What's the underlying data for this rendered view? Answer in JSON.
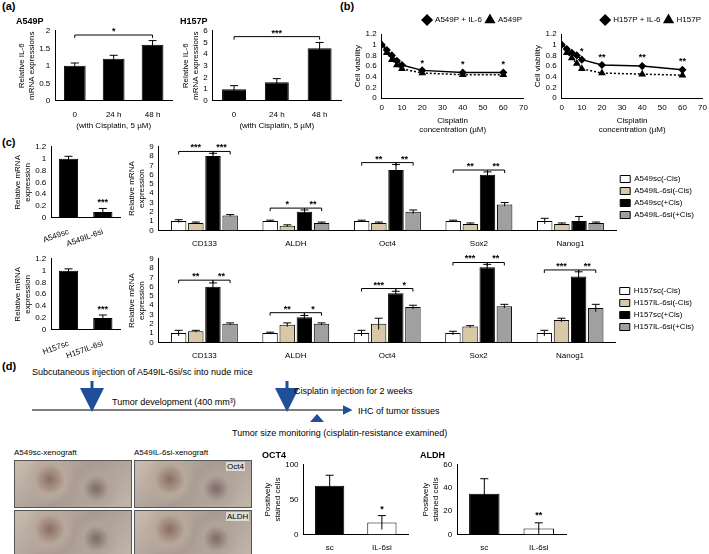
{
  "chart_data": [
    {
      "type": "bar",
      "title": "A549P",
      "categories": [
        "0",
        "24 h",
        "48 h"
      ],
      "values": [
        1.0,
        1.2,
        1.6
      ],
      "errors": [
        0.08,
        0.1,
        0.12
      ],
      "color": "#000000",
      "ylim": [
        0,
        2
      ],
      "yticks": [
        0,
        0.5,
        1,
        1.5,
        2
      ],
      "ylabel": "Relative IL-6 mRNA expressions",
      "xlabel": "(with Cisplatin, 5 µM)",
      "grid": false,
      "annotations": [
        {
          "text": "*",
          "from": "0",
          "to": "48 h",
          "y": 1.88
        }
      ]
    },
    {
      "type": "bar",
      "title": "H157P",
      "categories": [
        "0",
        "24 h",
        "48 h"
      ],
      "values": [
        1.0,
        1.6,
        4.5
      ],
      "errors": [
        0.3,
        0.3,
        0.5
      ],
      "color": "#000000",
      "ylim": [
        0,
        6
      ],
      "yticks": [
        0,
        1,
        2,
        3,
        4,
        5,
        6
      ],
      "ylabel": "Relative IL-6 mRNA expressions",
      "xlabel": "(with Cisplatin, 5 µM)",
      "grid": false,
      "annotations": [
        {
          "text": "***",
          "from": "0",
          "to": "48 h",
          "y": 5.5
        }
      ]
    },
    {
      "type": "line",
      "x": [
        0,
        2.5,
        5,
        7.5,
        10,
        20,
        40,
        60
      ],
      "xlim": [
        0,
        70
      ],
      "xticks": [
        0,
        10,
        20,
        30,
        40,
        50,
        60,
        70
      ],
      "ylim": [
        0,
        1.2
      ],
      "yticks": [
        0,
        0.2,
        0.4,
        0.6,
        0.8,
        1,
        1.2
      ],
      "xlabel": "Cisplatin concentration (µM)",
      "ylabel": "Cell viability",
      "grid": false,
      "legend": "top",
      "series": [
        {
          "name": "A549P + IL-6",
          "color": "#000000",
          "marker": "diamond",
          "line_style": "solid",
          "values": [
            1.0,
            0.9,
            0.8,
            0.7,
            0.62,
            0.52,
            0.48,
            0.48
          ]
        },
        {
          "name": "A549P",
          "color": "#000000",
          "marker": "triangle",
          "line_style": "dotted",
          "values": [
            1.0,
            0.85,
            0.72,
            0.62,
            0.55,
            0.47,
            0.44,
            0.44
          ]
        }
      ],
      "annotations": [
        {
          "text": "*",
          "x": 20,
          "y": 0.57
        },
        {
          "text": "*",
          "x": 40,
          "y": 0.54
        },
        {
          "text": "*",
          "x": 60,
          "y": 0.54
        }
      ]
    },
    {
      "type": "line",
      "x": [
        0,
        2.5,
        5,
        7.5,
        10,
        20,
        40,
        60
      ],
      "xlim": [
        0,
        70
      ],
      "xticks": [
        0,
        10,
        20,
        30,
        40,
        50,
        60,
        70
      ],
      "ylim": [
        0,
        1.2
      ],
      "yticks": [
        0,
        0.2,
        0.4,
        0.6,
        0.8,
        1,
        1.2
      ],
      "xlabel": "Cisplatin concentration (µM)",
      "ylabel": "Cell viability",
      "grid": false,
      "legend": "top",
      "series": [
        {
          "name": "H157P + IL-6",
          "color": "#000000",
          "marker": "diamond",
          "line_style": "solid",
          "values": [
            1.0,
            0.92,
            0.85,
            0.8,
            0.72,
            0.62,
            0.6,
            0.53
          ]
        },
        {
          "name": "H157P",
          "color": "#000000",
          "marker": "triangle",
          "line_style": "dotted",
          "values": [
            1.0,
            0.85,
            0.75,
            0.65,
            0.55,
            0.47,
            0.45,
            0.43
          ]
        }
      ],
      "annotations": [
        {
          "text": "*",
          "x": 10,
          "y": 0.78
        },
        {
          "text": "**",
          "x": 20,
          "y": 0.68
        },
        {
          "text": "**",
          "x": 40,
          "y": 0.67
        },
        {
          "text": "**",
          "x": 60,
          "y": 0.6
        }
      ]
    },
    {
      "type": "bar",
      "categories": [
        "A549sc",
        "A549IL-6si"
      ],
      "values": [
        1.0,
        0.1
      ],
      "errors": [
        0.04,
        0.06
      ],
      "color": "#000000",
      "ylim": [
        0,
        1.2
      ],
      "yticks": [
        0,
        0.2,
        0.4,
        0.6,
        0.8,
        1,
        1.2
      ],
      "ylabel": "Relative mRNA expression",
      "grid": false,
      "annotations": [
        {
          "text": "***",
          "x": "A549IL-6si",
          "y": 0.18
        }
      ]
    },
    {
      "type": "bar",
      "categories": [
        "CD133",
        "ALDH",
        "Oct4",
        "Sox2",
        "Nanog1"
      ],
      "ylim": [
        0,
        9
      ],
      "yticks": [
        0,
        1,
        2,
        3,
        4,
        5,
        6,
        7,
        8,
        9
      ],
      "ylabel": "Relative mRNA expression",
      "grid": false,
      "legend": "right",
      "series": [
        {
          "name": "A549sc(-Cis)",
          "color": "#ffffff",
          "values": [
            1.0,
            1.0,
            1.0,
            1.0,
            1.0
          ],
          "errors": [
            0.15,
            0.1,
            0.1,
            0.1,
            0.3
          ]
        },
        {
          "name": "A549IL-6si(-Cis)",
          "color": "#d8c8a8",
          "values": [
            0.8,
            0.5,
            0.8,
            0.7,
            0.7
          ],
          "errors": [
            0.1,
            0.1,
            0.1,
            0.1,
            0.1
          ]
        },
        {
          "name": "A549sc(+Cis)",
          "color": "#000000",
          "values": [
            8.0,
            2.0,
            6.5,
            6.0,
            1.0
          ],
          "errors": [
            0.3,
            0.2,
            0.6,
            0.3,
            0.5
          ]
        },
        {
          "name": "A549IL-6si(+Cis)",
          "color": "#a0a0a0",
          "values": [
            1.6,
            0.8,
            2.0,
            2.8,
            0.8
          ],
          "errors": [
            0.1,
            0.1,
            0.2,
            0.2,
            0.1
          ]
        }
      ],
      "annotations": [
        {
          "text": "***",
          "from": {
            "category": "CD133",
            "series": "A549sc(-Cis)"
          },
          "to": {
            "category": "CD133",
            "series": "A549sc(+Cis)"
          },
          "y": 8.5
        },
        {
          "text": "***",
          "from": {
            "category": "CD133",
            "series": "A549sc(+Cis)"
          },
          "to": {
            "category": "CD133",
            "series": "A549IL-6si(+Cis)"
          },
          "y": 8.5
        },
        {
          "text": "*",
          "from": {
            "category": "ALDH",
            "series": "A549sc(-Cis)"
          },
          "to": {
            "category": "ALDH",
            "series": "A549sc(+Cis)"
          },
          "y": 2.4
        },
        {
          "text": "**",
          "from": {
            "category": "ALDH",
            "series": "A549sc(+Cis)"
          },
          "to": {
            "category": "ALDH",
            "series": "A549IL-6si(+Cis)"
          },
          "y": 2.4
        },
        {
          "text": "**",
          "from": {
            "category": "Oct4",
            "series": "A549sc(-Cis)"
          },
          "to": {
            "category": "Oct4",
            "series": "A549sc(+Cis)"
          },
          "y": 7.3
        },
        {
          "text": "**",
          "from": {
            "category": "Oct4",
            "series": "A549sc(+Cis)"
          },
          "to": {
            "category": "Oct4",
            "series": "A549IL-6si(+Cis)"
          },
          "y": 7.3
        },
        {
          "text": "**",
          "from": {
            "category": "Sox2",
            "series": "A549sc(-Cis)"
          },
          "to": {
            "category": "Sox2",
            "series": "A549sc(+Cis)"
          },
          "y": 6.5
        },
        {
          "text": "**",
          "from": {
            "category": "Sox2",
            "series": "A549sc(+Cis)"
          },
          "to": {
            "category": "Sox2",
            "series": "A549IL-6si(+Cis)"
          },
          "y": 6.5
        }
      ]
    },
    {
      "type": "bar",
      "categories": [
        "H157sc",
        "H157IL-6si"
      ],
      "values": [
        1.0,
        0.2
      ],
      "errors": [
        0.03,
        0.05
      ],
      "color": "#000000",
      "ylim": [
        0,
        1.2
      ],
      "yticks": [
        0,
        0.2,
        0.4,
        0.6,
        0.8,
        1,
        1.2
      ],
      "ylabel": "Relative mRNA expression",
      "grid": false,
      "annotations": [
        {
          "text": "***",
          "x": "H157IL-6si",
          "y": 0.27
        }
      ]
    },
    {
      "type": "bar",
      "categories": [
        "CD133",
        "ALDH",
        "Oct4",
        "Sox2",
        "Nanog1"
      ],
      "ylim": [
        0,
        9
      ],
      "yticks": [
        0,
        1,
        2,
        3,
        4,
        5,
        6,
        7,
        8,
        9
      ],
      "ylabel": "Relative mRNA expression",
      "grid": false,
      "legend": "right",
      "series": [
        {
          "name": "H157sc(-Cis)",
          "color": "#ffffff",
          "values": [
            1.0,
            1.0,
            1.0,
            1.0,
            1.0
          ],
          "errors": [
            0.3,
            0.1,
            0.3,
            0.2,
            0.3
          ]
        },
        {
          "name": "H157IL-6si(-Cis)",
          "color": "#d8c8a8",
          "values": [
            1.2,
            1.9,
            2.0,
            1.7,
            2.4
          ],
          "errors": [
            0.1,
            0.2,
            0.6,
            0.1,
            0.2
          ]
        },
        {
          "name": "H157sc(+Cis)",
          "color": "#000000",
          "values": [
            6.0,
            2.7,
            5.3,
            8.1,
            7.1
          ],
          "errors": [
            0.4,
            0.2,
            0.2,
            0.3,
            0.5
          ]
        },
        {
          "name": "H157IL-6si(+Cis)",
          "color": "#a0a0a0",
          "values": [
            2.0,
            2.0,
            3.8,
            3.9,
            3.7
          ],
          "errors": [
            0.1,
            0.1,
            0.2,
            0.2,
            0.4
          ]
        }
      ],
      "annotations": [
        {
          "text": "**",
          "from": {
            "category": "CD133",
            "series": "H157sc(-Cis)"
          },
          "to": {
            "category": "CD133",
            "series": "H157sc(+Cis)"
          },
          "y": 6.7
        },
        {
          "text": "**",
          "from": {
            "category": "CD133",
            "series": "H157sc(+Cis)"
          },
          "to": {
            "category": "CD133",
            "series": "H157IL-6si(+Cis)"
          },
          "y": 6.7
        },
        {
          "text": "**",
          "from": {
            "category": "ALDH",
            "series": "H157sc(-Cis)"
          },
          "to": {
            "category": "ALDH",
            "series": "H157sc(+Cis)"
          },
          "y": 3.2
        },
        {
          "text": "*",
          "from": {
            "category": "ALDH",
            "series": "H157sc(+Cis)"
          },
          "to": {
            "category": "ALDH",
            "series": "H157IL-6si(+Cis)"
          },
          "y": 3.2
        },
        {
          "text": "***",
          "from": {
            "category": "Oct4",
            "series": "H157sc(-Cis)"
          },
          "to": {
            "category": "Oct4",
            "series": "H157sc(+Cis)"
          },
          "y": 5.8
        },
        {
          "text": "*",
          "from": {
            "category": "Oct4",
            "series": "H157sc(+Cis)"
          },
          "to": {
            "category": "Oct4",
            "series": "H157IL-6si(+Cis)"
          },
          "y": 5.8
        },
        {
          "text": "***",
          "from": {
            "category": "Sox2",
            "series": "H157sc(-Cis)"
          },
          "to": {
            "category": "Sox2",
            "series": "H157sc(+Cis)"
          },
          "y": 8.6
        },
        {
          "text": "**",
          "from": {
            "category": "Sox2",
            "series": "H157sc(+Cis)"
          },
          "to": {
            "category": "Sox2",
            "series": "H157IL-6si(+Cis)"
          },
          "y": 8.6
        },
        {
          "text": "***",
          "from": {
            "category": "Nanog1",
            "series": "H157sc(-Cis)"
          },
          "to": {
            "category": "Nanog1",
            "series": "H157sc(+Cis)"
          },
          "y": 7.8
        },
        {
          "text": "**",
          "from": {
            "category": "Nanog1",
            "series": "H157sc(+Cis)"
          },
          "to": {
            "category": "Nanog1",
            "series": "H157IL-6si(+Cis)"
          },
          "y": 7.8
        }
      ]
    },
    {
      "type": "bar",
      "title": "OCT4",
      "categories": [
        "sc",
        "IL-6si"
      ],
      "values": [
        70,
        17
      ],
      "errors": [
        15,
        10
      ],
      "colors": [
        "#000000",
        "#ffffff"
      ],
      "ylim": [
        0,
        100
      ],
      "yticks": [
        0,
        50,
        100
      ],
      "ylabel": "Positively stained cells",
      "grid": false,
      "annotations": [
        {
          "text": "*",
          "x": "IL-6si",
          "y": 29
        }
      ]
    },
    {
      "type": "bar",
      "title": "ALDH",
      "categories": [
        "sc",
        "IL-6si"
      ],
      "values": [
        35,
        5
      ],
      "errors": [
        13,
        5
      ],
      "colors": [
        "#000000",
        "#ffffff"
      ],
      "ylim": [
        0,
        60
      ],
      "yticks": [
        0,
        20,
        40,
        60
      ],
      "ylabel": "Positively stained cells",
      "grid": false,
      "annotations": [
        {
          "text": "**",
          "x": "IL-6si",
          "y": 12
        }
      ]
    }
  ],
  "panel_labels": [
    "(a)",
    "(b)",
    "(c)",
    "(d)"
  ],
  "diagram": {
    "injection": "Subcutaneous injection of A549IL-6si/sc into nude mice",
    "development": "Tumor development (400 mm³)",
    "treatment": "Cisplatin injection for 2 weeks",
    "endpoint": "IHC of tumor tissues",
    "monitoring": "Tumor size monitoring (cisplatin-resistance examined)"
  },
  "ihc": {
    "columns": [
      "A549sc-xenograft",
      "A549IL-6si-xenograft"
    ],
    "rows": [
      "Oct4",
      "ALDH"
    ]
  }
}
